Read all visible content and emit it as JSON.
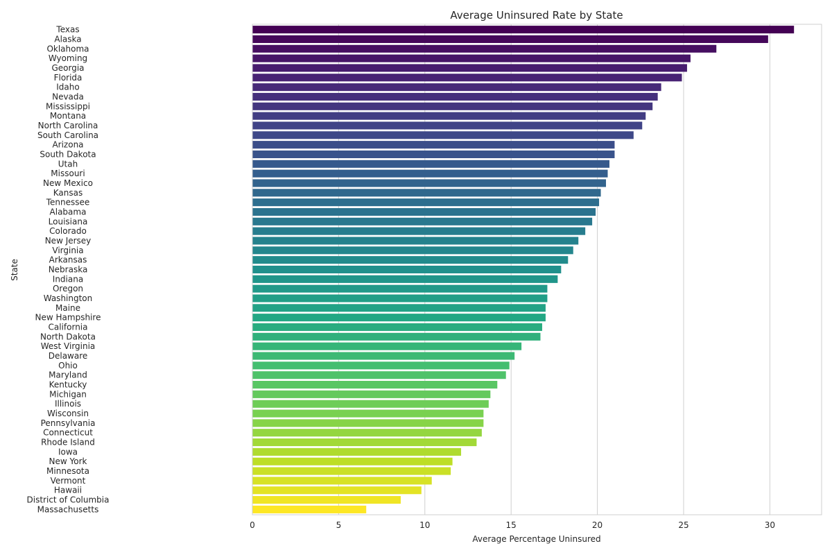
{
  "chart_data": {
    "type": "bar",
    "orientation": "horizontal",
    "title": "Average Uninsured Rate by State",
    "xlabel": "Average Percentage Uninsured",
    "ylabel": "State",
    "xlim": [
      0,
      33
    ],
    "xticks": [
      0,
      5,
      10,
      15,
      20,
      25,
      30
    ],
    "grid": true,
    "colormap": "viridis",
    "categories": [
      "Texas",
      "Alaska",
      "Oklahoma",
      "Wyoming",
      "Georgia",
      "Florida",
      "Idaho",
      "Nevada",
      "Mississippi",
      "Montana",
      "North Carolina",
      "South Carolina",
      "Arizona",
      "South Dakota",
      "Utah",
      "Missouri",
      "New Mexico",
      "Kansas",
      "Tennessee",
      "Alabama",
      "Louisiana",
      "Colorado",
      "New Jersey",
      "Virginia",
      "Arkansas",
      "Nebraska",
      "Indiana",
      "Oregon",
      "Washington",
      "Maine",
      "New Hampshire",
      "California",
      "North Dakota",
      "West Virginia",
      "Delaware",
      "Ohio",
      "Maryland",
      "Kentucky",
      "Michigan",
      "Illinois",
      "Wisconsin",
      "Pennsylvania",
      "Connecticut",
      "Rhode Island",
      "Iowa",
      "New York",
      "Minnesota",
      "Vermont",
      "Hawaii",
      "District of Columbia",
      "Massachusetts"
    ],
    "values": [
      31.4,
      29.9,
      26.9,
      25.4,
      25.2,
      24.9,
      23.7,
      23.5,
      23.2,
      22.8,
      22.6,
      22.1,
      21.0,
      21.0,
      20.7,
      20.6,
      20.5,
      20.2,
      20.1,
      19.9,
      19.7,
      19.3,
      18.9,
      18.6,
      18.3,
      17.9,
      17.7,
      17.1,
      17.1,
      17.0,
      17.0,
      16.8,
      16.7,
      15.6,
      15.2,
      14.9,
      14.7,
      14.2,
      13.8,
      13.7,
      13.4,
      13.4,
      13.3,
      13.0,
      12.1,
      11.6,
      11.5,
      10.4,
      9.8,
      8.6,
      6.6
    ]
  }
}
